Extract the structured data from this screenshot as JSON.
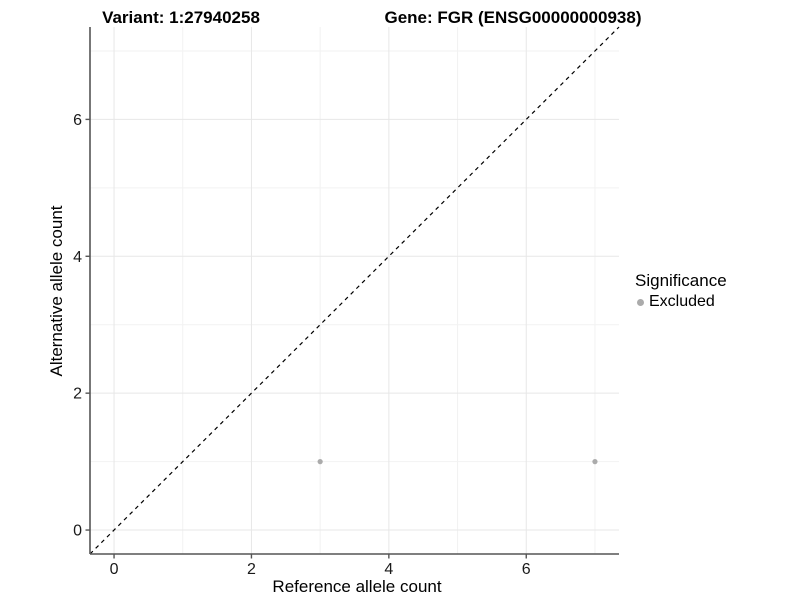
{
  "chart_data": {
    "type": "scatter",
    "title_left": "Variant: 1:27940258",
    "title_right": "Gene: FGR (ENSG00000000938)",
    "xlabel": "Reference allele count",
    "ylabel": "Alternative allele count",
    "xlim": [
      -0.35,
      7.35
    ],
    "ylim": [
      -0.35,
      7.35
    ],
    "x_ticks": [
      0,
      2,
      4,
      6
    ],
    "y_ticks": [
      0,
      2,
      4,
      6
    ],
    "x_minor_gridlines": [
      1,
      3,
      5,
      7
    ],
    "y_minor_gridlines": [
      1,
      3,
      5,
      7
    ],
    "grid": true,
    "legend_position": "right",
    "series": [
      {
        "name": "Excluded",
        "color": "#ababab",
        "points": [
          {
            "x": 3,
            "y": 1
          },
          {
            "x": 7,
            "y": 1
          }
        ]
      }
    ],
    "reference_line": {
      "style": "dashed",
      "color": "#000000",
      "from": [
        -0.35,
        -0.35
      ],
      "to": [
        7.35,
        7.35
      ]
    },
    "legend": {
      "title": "Significance",
      "items": [
        {
          "label": "Excluded",
          "color": "#ababab",
          "marker": "point-icon"
        }
      ]
    },
    "colors": {
      "grid_major": "#e7e7e7",
      "grid_minor": "#f2f2f2",
      "axis_line": "#555555",
      "tick_text": "#1a1a1a"
    }
  }
}
